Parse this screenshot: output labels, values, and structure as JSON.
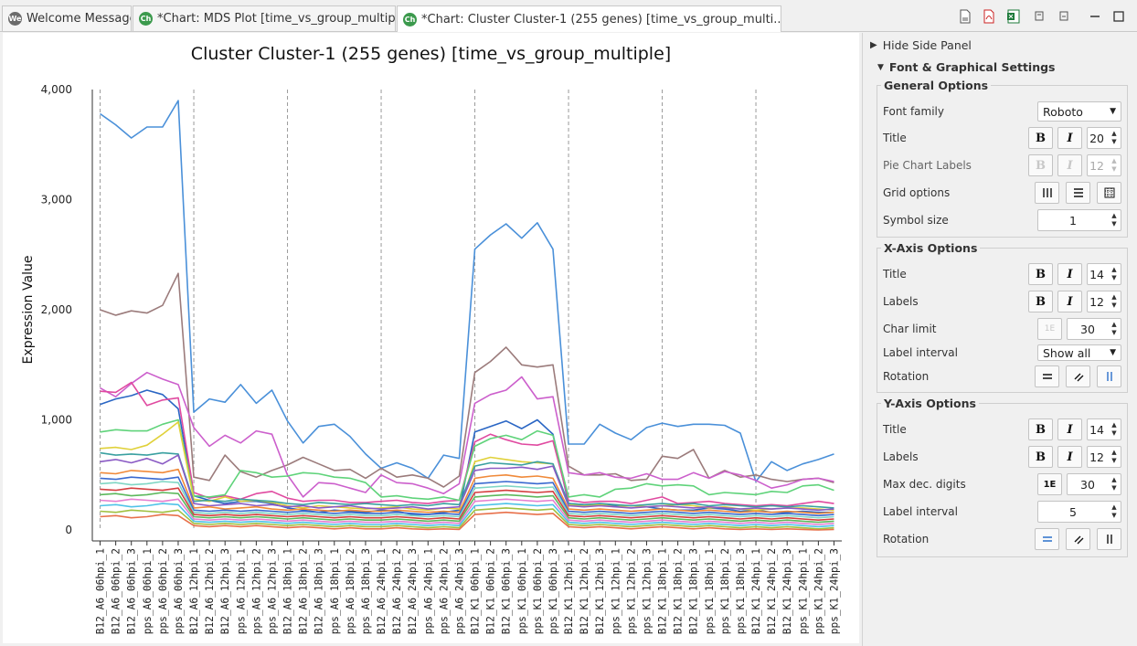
{
  "tabs": [
    {
      "label": "Welcome Message",
      "icon": "We",
      "color": "#6b6b6b"
    },
    {
      "label": "*Chart: MDS Plot [time_vs_group_multiple]",
      "icon": "Ch",
      "color": "#3c9a4d"
    },
    {
      "label": "*Chart: Cluster Cluster-1 (255 genes) [time_vs_group_multi...",
      "icon": "Ch",
      "color": "#3c9a4d"
    }
  ],
  "toolbar_icons": [
    "document-icon",
    "pdf-icon",
    "excel-icon",
    "minimize-icon",
    "maximize-icon"
  ],
  "side_panel": {
    "hide_label": "Hide Side Panel",
    "section_label": "Font & Graphical Settings",
    "general": {
      "legend": "General Options",
      "font_family_label": "Font family",
      "font_family_value": "Roboto",
      "title_label": "Title",
      "title_size": "20",
      "pie_label": "Pie Chart Labels",
      "pie_size": "12",
      "grid_label": "Grid options",
      "symbol_label": "Symbol size",
      "symbol_value": "1"
    },
    "xaxis": {
      "legend": "X-Axis Options",
      "title_label": "Title",
      "title_size": "14",
      "labels_label": "Labels",
      "labels_size": "12",
      "char_limit_label": "Char limit",
      "char_limit_value": "30",
      "interval_label": "Label interval",
      "interval_value": "Show all",
      "rotation_label": "Rotation"
    },
    "yaxis": {
      "legend": "Y-Axis Options",
      "title_label": "Title",
      "title_size": "14",
      "labels_label": "Labels",
      "labels_size": "12",
      "max_dec_label": "Max dec. digits",
      "max_dec_icon": "1E",
      "max_dec_value": "30",
      "interval_label": "Label interval",
      "interval_value": "5",
      "rotation_label": "Rotation"
    },
    "font_buttons": {
      "bold": "B",
      "italic": "I"
    }
  },
  "chart_data": {
    "type": "line",
    "title": "Cluster Cluster-1 (255 genes) [time_vs_group_multiple]",
    "xlabel": "",
    "ylabel": "Expression Value",
    "ylim": [
      0,
      4000
    ],
    "yticks": [
      0,
      1000,
      2000,
      3000,
      4000
    ],
    "ytick_labels": [
      "0",
      "1,000",
      "2,000",
      "3,000",
      "4,000"
    ],
    "grid": "vertical dashed separators between groups",
    "categories": [
      "B12_A6_06hpi_1",
      "B12_A6_06hpi_2",
      "B12_A6_06hpi_3",
      "pps_A6_06hpi_1",
      "pps_A6_06hpi_2",
      "pps_A6_06hpi_3",
      "B12_A6_12hpi_1",
      "B12_A6_12hpi_2",
      "B12_A6_12hpi_3",
      "pps_A6_12hpi_1",
      "pps_A6_12hpi_2",
      "pps_A6_12hpi_3",
      "B12_A6_18hpi_1",
      "B12_A6_18hpi_2",
      "B12_A6_18hpi_3",
      "pps_A6_18hpi_1",
      "pps_A6_18hpi_2",
      "pps_A6_18hpi_3",
      "B12_A6_24hpi_1",
      "B12_A6_24hpi_2",
      "B12_A6_24hpi_3",
      "pps_A6_24hpi_1",
      "pps_A6_24hpi_2",
      "pps_A6_24hpi_3",
      "B12_K1_06hpi_1",
      "B12_K1_06hpi_2",
      "B12_K1_06hpi_3",
      "pps_K1_06hpi_1",
      "pps_K1_06hpi_2",
      "pps_K1_06hpi_3",
      "B12_K1_12hpi_1",
      "B12_K1_12hpi_2",
      "B12_K1_12hpi_3",
      "pps_K1_12hpi_1",
      "pps_K1_12hpi_2",
      "pps_K1_12hpi_3",
      "B12_K1_18hpi_1",
      "B12_K1_18hpi_2",
      "B12_K1_18hpi_3",
      "pps_K1_18hpi_1",
      "pps_K1_18hpi_2",
      "pps_K1_18hpi_3",
      "B12_K1_24hpi_1",
      "B12_K1_24hpi_2",
      "B12_K1_24hpi_3",
      "pps_K1_24hpi_1",
      "pps_K1_24hpi_2",
      "pps_K1_24hpi_3"
    ],
    "series": [
      {
        "color": "#4a90d9",
        "values": [
          3780,
          3680,
          3560,
          3660,
          3660,
          3900,
          1070,
          1190,
          1160,
          1320,
          1150,
          1270,
          990,
          790,
          940,
          960,
          850,
          690,
          560,
          610,
          560,
          470,
          680,
          650,
          2550,
          2680,
          2780,
          2650,
          2790,
          2550,
          780,
          780,
          960,
          880,
          820,
          930,
          970,
          940,
          960,
          960,
          950,
          880,
          440,
          620,
          540,
          600,
          640,
          690
        ]
      },
      {
        "color": "#9b7b7b",
        "values": [
          2000,
          1950,
          1990,
          1970,
          2040,
          2330,
          480,
          450,
          680,
          530,
          480,
          540,
          590,
          660,
          600,
          540,
          550,
          470,
          560,
          480,
          500,
          470,
          390,
          490,
          1430,
          1530,
          1660,
          1500,
          1480,
          1500,
          580,
          500,
          500,
          510,
          450,
          460,
          670,
          650,
          730,
          470,
          540,
          480,
          500,
          460,
          440,
          460,
          470,
          430
        ]
      },
      {
        "color": "#cc5fcc",
        "values": [
          1290,
          1210,
          1330,
          1430,
          1370,
          1320,
          930,
          760,
          860,
          790,
          900,
          870,
          500,
          300,
          430,
          420,
          380,
          340,
          500,
          430,
          420,
          380,
          330,
          420,
          1150,
          1230,
          1270,
          1390,
          1190,
          1210,
          520,
          500,
          520,
          480,
          470,
          510,
          460,
          460,
          520,
          470,
          530,
          500,
          450,
          380,
          410,
          460,
          470,
          440
        ]
      },
      {
        "color": "#2a66c4",
        "values": [
          1140,
          1190,
          1220,
          1270,
          1230,
          1100,
          310,
          270,
          240,
          260,
          260,
          240,
          200,
          180,
          160,
          180,
          170,
          160,
          180,
          170,
          140,
          140,
          160,
          180,
          890,
          940,
          990,
          920,
          1000,
          870,
          240,
          230,
          230,
          220,
          220,
          210,
          190,
          180,
          180,
          200,
          190,
          170,
          180,
          160,
          160,
          170,
          160,
          160
        ]
      },
      {
        "color": "#e04aa0",
        "values": [
          1260,
          1250,
          1340,
          1130,
          1180,
          1200,
          340,
          290,
          310,
          280,
          330,
          350,
          290,
          260,
          270,
          270,
          250,
          250,
          260,
          270,
          250,
          240,
          260,
          270,
          800,
          870,
          820,
          780,
          770,
          810,
          270,
          250,
          260,
          260,
          240,
          270,
          300,
          240,
          250,
          260,
          240,
          230,
          220,
          230,
          220,
          240,
          260,
          240
        ]
      },
      {
        "color": "#5fd37a",
        "values": [
          890,
          910,
          900,
          900,
          960,
          1000,
          310,
          300,
          320,
          540,
          520,
          480,
          490,
          520,
          510,
          480,
          470,
          430,
          300,
          310,
          290,
          280,
          300,
          270,
          760,
          830,
          860,
          820,
          900,
          860,
          300,
          320,
          300,
          370,
          380,
          420,
          400,
          410,
          400,
          320,
          340,
          330,
          320,
          350,
          340,
          400,
          410,
          360
        ]
      },
      {
        "color": "#e0d13a",
        "values": [
          740,
          750,
          730,
          770,
          870,
          980,
          280,
          260,
          300,
          260,
          270,
          250,
          220,
          200,
          220,
          210,
          200,
          190,
          200,
          210,
          190,
          180,
          200,
          190,
          620,
          660,
          640,
          620,
          610,
          600,
          230,
          220,
          230,
          210,
          220,
          210,
          220,
          230,
          220,
          200,
          210,
          190,
          180,
          190,
          200,
          200,
          190,
          180
        ]
      },
      {
        "color": "#3aa0a0",
        "values": [
          700,
          680,
          690,
          680,
          700,
          690,
          260,
          270,
          260,
          280,
          270,
          260,
          240,
          230,
          250,
          240,
          230,
          240,
          230,
          220,
          230,
          220,
          240,
          230,
          580,
          610,
          600,
          590,
          620,
          600,
          240,
          230,
          240,
          230,
          220,
          230,
          240,
          230,
          240,
          220,
          230,
          220,
          210,
          220,
          210,
          220,
          210,
          200
        ]
      },
      {
        "color": "#8a5ac4",
        "values": [
          620,
          640,
          610,
          650,
          600,
          680,
          240,
          220,
          230,
          240,
          220,
          230,
          210,
          220,
          200,
          210,
          220,
          200,
          190,
          200,
          210,
          190,
          200,
          210,
          540,
          560,
          560,
          570,
          550,
          580,
          220,
          210,
          220,
          210,
          200,
          210,
          220,
          210,
          200,
          210,
          200,
          190,
          200,
          190,
          200,
          190,
          180,
          190
        ]
      },
      {
        "color": "#f08a3a",
        "values": [
          520,
          510,
          540,
          530,
          520,
          550,
          200,
          210,
          190,
          200,
          210,
          190,
          180,
          190,
          180,
          170,
          180,
          170,
          170,
          180,
          170,
          160,
          170,
          160,
          470,
          490,
          500,
          480,
          490,
          470,
          190,
          180,
          190,
          180,
          170,
          180,
          190,
          180,
          170,
          180,
          170,
          160,
          170,
          160,
          170,
          160,
          150,
          160
        ]
      },
      {
        "color": "#3a6ad0",
        "values": [
          470,
          460,
          480,
          470,
          460,
          480,
          180,
          170,
          180,
          170,
          180,
          170,
          160,
          170,
          160,
          150,
          160,
          150,
          150,
          160,
          150,
          140,
          150,
          140,
          420,
          430,
          440,
          430,
          420,
          430,
          170,
          160,
          170,
          160,
          150,
          160,
          170,
          160,
          150,
          160,
          150,
          140,
          150,
          140,
          150,
          140,
          130,
          140
        ]
      },
      {
        "color": "#7fd6c4",
        "values": [
          420,
          430,
          410,
          420,
          440,
          430,
          160,
          150,
          160,
          150,
          160,
          150,
          140,
          150,
          140,
          130,
          140,
          130,
          130,
          140,
          130,
          120,
          130,
          120,
          380,
          390,
          400,
          390,
          380,
          390,
          150,
          140,
          150,
          140,
          130,
          140,
          150,
          140,
          130,
          140,
          130,
          120,
          130,
          120,
          130,
          120,
          110,
          120
        ]
      },
      {
        "color": "#d43f3f",
        "values": [
          370,
          360,
          380,
          370,
          360,
          380,
          140,
          130,
          140,
          130,
          140,
          130,
          120,
          130,
          120,
          110,
          120,
          110,
          110,
          120,
          110,
          100,
          110,
          100,
          340,
          350,
          360,
          350,
          340,
          350,
          130,
          120,
          130,
          120,
          110,
          120,
          130,
          120,
          110,
          120,
          110,
          100,
          110,
          100,
          110,
          100,
          90,
          100
        ]
      },
      {
        "color": "#5cb85c",
        "values": [
          320,
          330,
          310,
          320,
          340,
          330,
          120,
          110,
          120,
          110,
          120,
          110,
          100,
          110,
          100,
          90,
          100,
          90,
          90,
          100,
          90,
          80,
          90,
          80,
          300,
          310,
          320,
          310,
          300,
          310,
          110,
          100,
          110,
          100,
          90,
          100,
          110,
          100,
          90,
          100,
          90,
          80,
          90,
          80,
          90,
          80,
          70,
          80
        ]
      },
      {
        "color": "#e67fd0",
        "values": [
          270,
          260,
          280,
          270,
          260,
          280,
          100,
          90,
          100,
          90,
          100,
          90,
          80,
          90,
          80,
          70,
          80,
          70,
          70,
          80,
          70,
          60,
          70,
          60,
          260,
          270,
          280,
          270,
          260,
          270,
          90,
          80,
          90,
          80,
          70,
          80,
          90,
          80,
          70,
          80,
          70,
          60,
          70,
          60,
          70,
          60,
          50,
          60
        ]
      },
      {
        "color": "#4fc3e8",
        "values": [
          220,
          230,
          210,
          220,
          240,
          230,
          80,
          70,
          80,
          70,
          80,
          70,
          60,
          70,
          60,
          50,
          60,
          50,
          50,
          60,
          50,
          40,
          50,
          40,
          220,
          230,
          240,
          230,
          220,
          230,
          70,
          60,
          70,
          60,
          50,
          60,
          70,
          60,
          50,
          60,
          50,
          40,
          50,
          40,
          50,
          40,
          30,
          40
        ]
      },
      {
        "color": "#a0c040",
        "values": [
          170,
          160,
          180,
          170,
          160,
          180,
          60,
          50,
          60,
          50,
          60,
          50,
          40,
          50,
          40,
          30,
          40,
          30,
          30,
          40,
          30,
          20,
          30,
          20,
          180,
          190,
          200,
          190,
          180,
          190,
          50,
          40,
          50,
          40,
          30,
          40,
          50,
          40,
          30,
          40,
          30,
          20,
          30,
          20,
          30,
          20,
          10,
          20
        ]
      },
      {
        "color": "#e8704a",
        "values": [
          120,
          130,
          110,
          120,
          140,
          130,
          40,
          30,
          40,
          30,
          40,
          30,
          20,
          30,
          20,
          10,
          20,
          10,
          10,
          20,
          10,
          5,
          10,
          5,
          140,
          150,
          160,
          150,
          140,
          150,
          30,
          20,
          30,
          20,
          10,
          20,
          30,
          20,
          10,
          20,
          10,
          5,
          10,
          5,
          10,
          5,
          0,
          5
        ]
      }
    ]
  }
}
